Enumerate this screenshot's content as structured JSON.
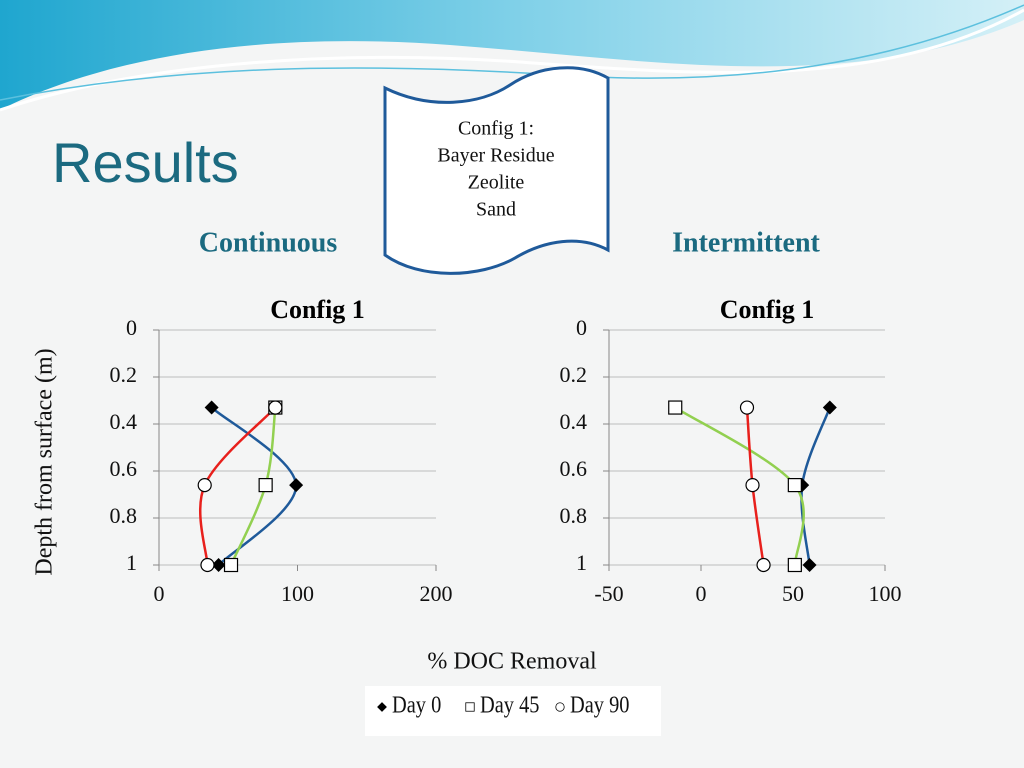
{
  "slide": {
    "title": "Results",
    "scroll": [
      "Config 1:",
      "Bayer Residue",
      "Zeolite",
      "Sand"
    ],
    "labels": [
      "Continuous",
      "Intermittent"
    ],
    "x_label": "% DOC Removal",
    "y_label": "Depth from surface (m)"
  },
  "chart_data": [
    {
      "type": "line",
      "title": "Config 1",
      "smooth": true,
      "y_reversed": true,
      "xlim": [
        0,
        200
      ],
      "xticks": [
        0,
        100,
        200
      ],
      "ylim": [
        0,
        1
      ],
      "yticks": [
        0,
        0.2,
        0.4,
        0.6,
        0.8,
        1
      ],
      "grid": true,
      "series": [
        {
          "name": "Day 0",
          "color": "#1f5a9a",
          "marker": "diamond",
          "x": [
            38,
            99,
            43
          ],
          "values": [
            0.33,
            0.66,
            1
          ]
        },
        {
          "name": "Day 45",
          "color": "#92d050",
          "marker": "square",
          "x": [
            84,
            77,
            52
          ],
          "values": [
            0.33,
            0.66,
            1
          ]
        },
        {
          "name": "Day 90",
          "color": "#e8201c",
          "marker": "circle",
          "x": [
            84,
            33,
            35
          ],
          "values": [
            0.33,
            0.66,
            1
          ]
        }
      ]
    },
    {
      "type": "line",
      "title": "Config 1",
      "smooth": true,
      "y_reversed": true,
      "xlim": [
        -50,
        100
      ],
      "xticks": [
        -50,
        0,
        50,
        100
      ],
      "ylim": [
        0,
        1
      ],
      "yticks": [
        0,
        0.2,
        0.4,
        0.6,
        0.8,
        1
      ],
      "grid": true,
      "series": [
        {
          "name": "Day 0",
          "color": "#1f5a9a",
          "marker": "diamond",
          "x": [
            70,
            55,
            59
          ],
          "values": [
            0.33,
            0.66,
            1
          ]
        },
        {
          "name": "Day 45",
          "color": "#92d050",
          "marker": "square",
          "x": [
            -14,
            51,
            51
          ],
          "values": [
            0.33,
            0.66,
            1
          ]
        },
        {
          "name": "Day 90",
          "color": "#e8201c",
          "marker": "circle",
          "x": [
            25,
            28,
            34
          ],
          "values": [
            0.33,
            0.66,
            1
          ]
        }
      ]
    }
  ]
}
